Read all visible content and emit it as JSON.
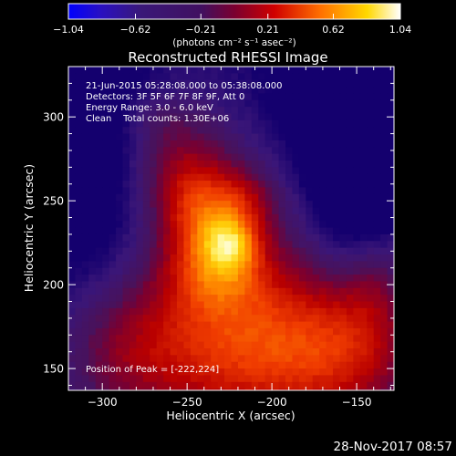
{
  "chart_data": {
    "type": "heatmap",
    "title": "Reconstructed RHESSI Image",
    "xlabel": "Heliocentric X (arcsec)",
    "ylabel": "Heliocentric Y (arcsec)",
    "xlim": [
      -320,
      -128
    ],
    "ylim": [
      137,
      330
    ],
    "x_ticks": [
      {
        "value": -300,
        "label": "−300"
      },
      {
        "value": -250,
        "label": "−250"
      },
      {
        "value": -200,
        "label": "−200"
      },
      {
        "value": -150,
        "label": "−150"
      }
    ],
    "y_ticks": [
      {
        "value": 150,
        "label": "150"
      },
      {
        "value": 200,
        "label": "200"
      },
      {
        "value": 250,
        "label": "250"
      },
      {
        "value": 300,
        "label": "300"
      }
    ],
    "colorbar": {
      "range": [
        -1.04,
        1.04
      ],
      "ticks": [
        {
          "value": -1.04,
          "label": "−1.04"
        },
        {
          "value": -0.62,
          "label": "−0.62"
        },
        {
          "value": -0.21,
          "label": "−0.21"
        },
        {
          "value": 0.21,
          "label": "0.21"
        },
        {
          "value": 0.62,
          "label": "0.62"
        },
        {
          "value": 1.04,
          "label": "1.04"
        }
      ],
      "unit_label": "(photons cm⁻² s⁻¹ asec⁻²)"
    },
    "info_lines": [
      "21-Jun-2015 05:28:08.000 to 05:38:08.000",
      "Detectors: 3F 5F 6F 7F 8F 9F, Att 0",
      "Energy Range: 3.0 - 6.0 keV",
      "Clean    Total counts: 1.30E+06"
    ],
    "peak_label": "Position of Peak = [-222,224]",
    "peak_position": [
      -222,
      224
    ],
    "grid": false,
    "sources": [
      {
        "x": -224,
        "y": 224,
        "amp": 0.34,
        "sx": 11,
        "sy": 11
      },
      {
        "x": -240,
        "y": 240,
        "amp": 0.34,
        "sx": 18,
        "sy": 20
      },
      {
        "x": -215,
        "y": 250,
        "amp": 0.15,
        "sx": 13,
        "sy": 13
      },
      {
        "x": -232,
        "y": 205,
        "amp": 0.22,
        "sx": 20,
        "sy": 16
      },
      {
        "x": -255,
        "y": 270,
        "amp": 0.22,
        "sx": 22,
        "sy": 20
      },
      {
        "x": -268,
        "y": 300,
        "amp": 0.12,
        "sx": 20,
        "sy": 14
      },
      {
        "x": -228,
        "y": 190,
        "amp": 0.28,
        "sx": 52,
        "sy": 60
      },
      {
        "x": -200,
        "y": 160,
        "amp": 0.32,
        "sx": 50,
        "sy": 32
      },
      {
        "x": -150,
        "y": 160,
        "amp": 0.2,
        "sx": 28,
        "sy": 30
      },
      {
        "x": -140,
        "y": 205,
        "amp": 0.15,
        "sx": 14,
        "sy": 24
      },
      {
        "x": -290,
        "y": 160,
        "amp": 0.18,
        "sx": 28,
        "sy": 30
      },
      {
        "x": -150,
        "y": 275,
        "amp": -0.45,
        "sx": 20,
        "sy": 40
      },
      {
        "x": -145,
        "y": 320,
        "amp": -0.3,
        "sx": 35,
        "sy": 30
      },
      {
        "x": -310,
        "y": 260,
        "amp": -0.22,
        "sx": 30,
        "sy": 55
      },
      {
        "x": -320,
        "y": 320,
        "amp": -0.15,
        "sx": 25,
        "sy": 25
      }
    ],
    "background": 0.05,
    "noise": 0.04,
    "pixel_arcsec": 4
  },
  "footer": {
    "date": "28-Nov-2017 08:57"
  }
}
